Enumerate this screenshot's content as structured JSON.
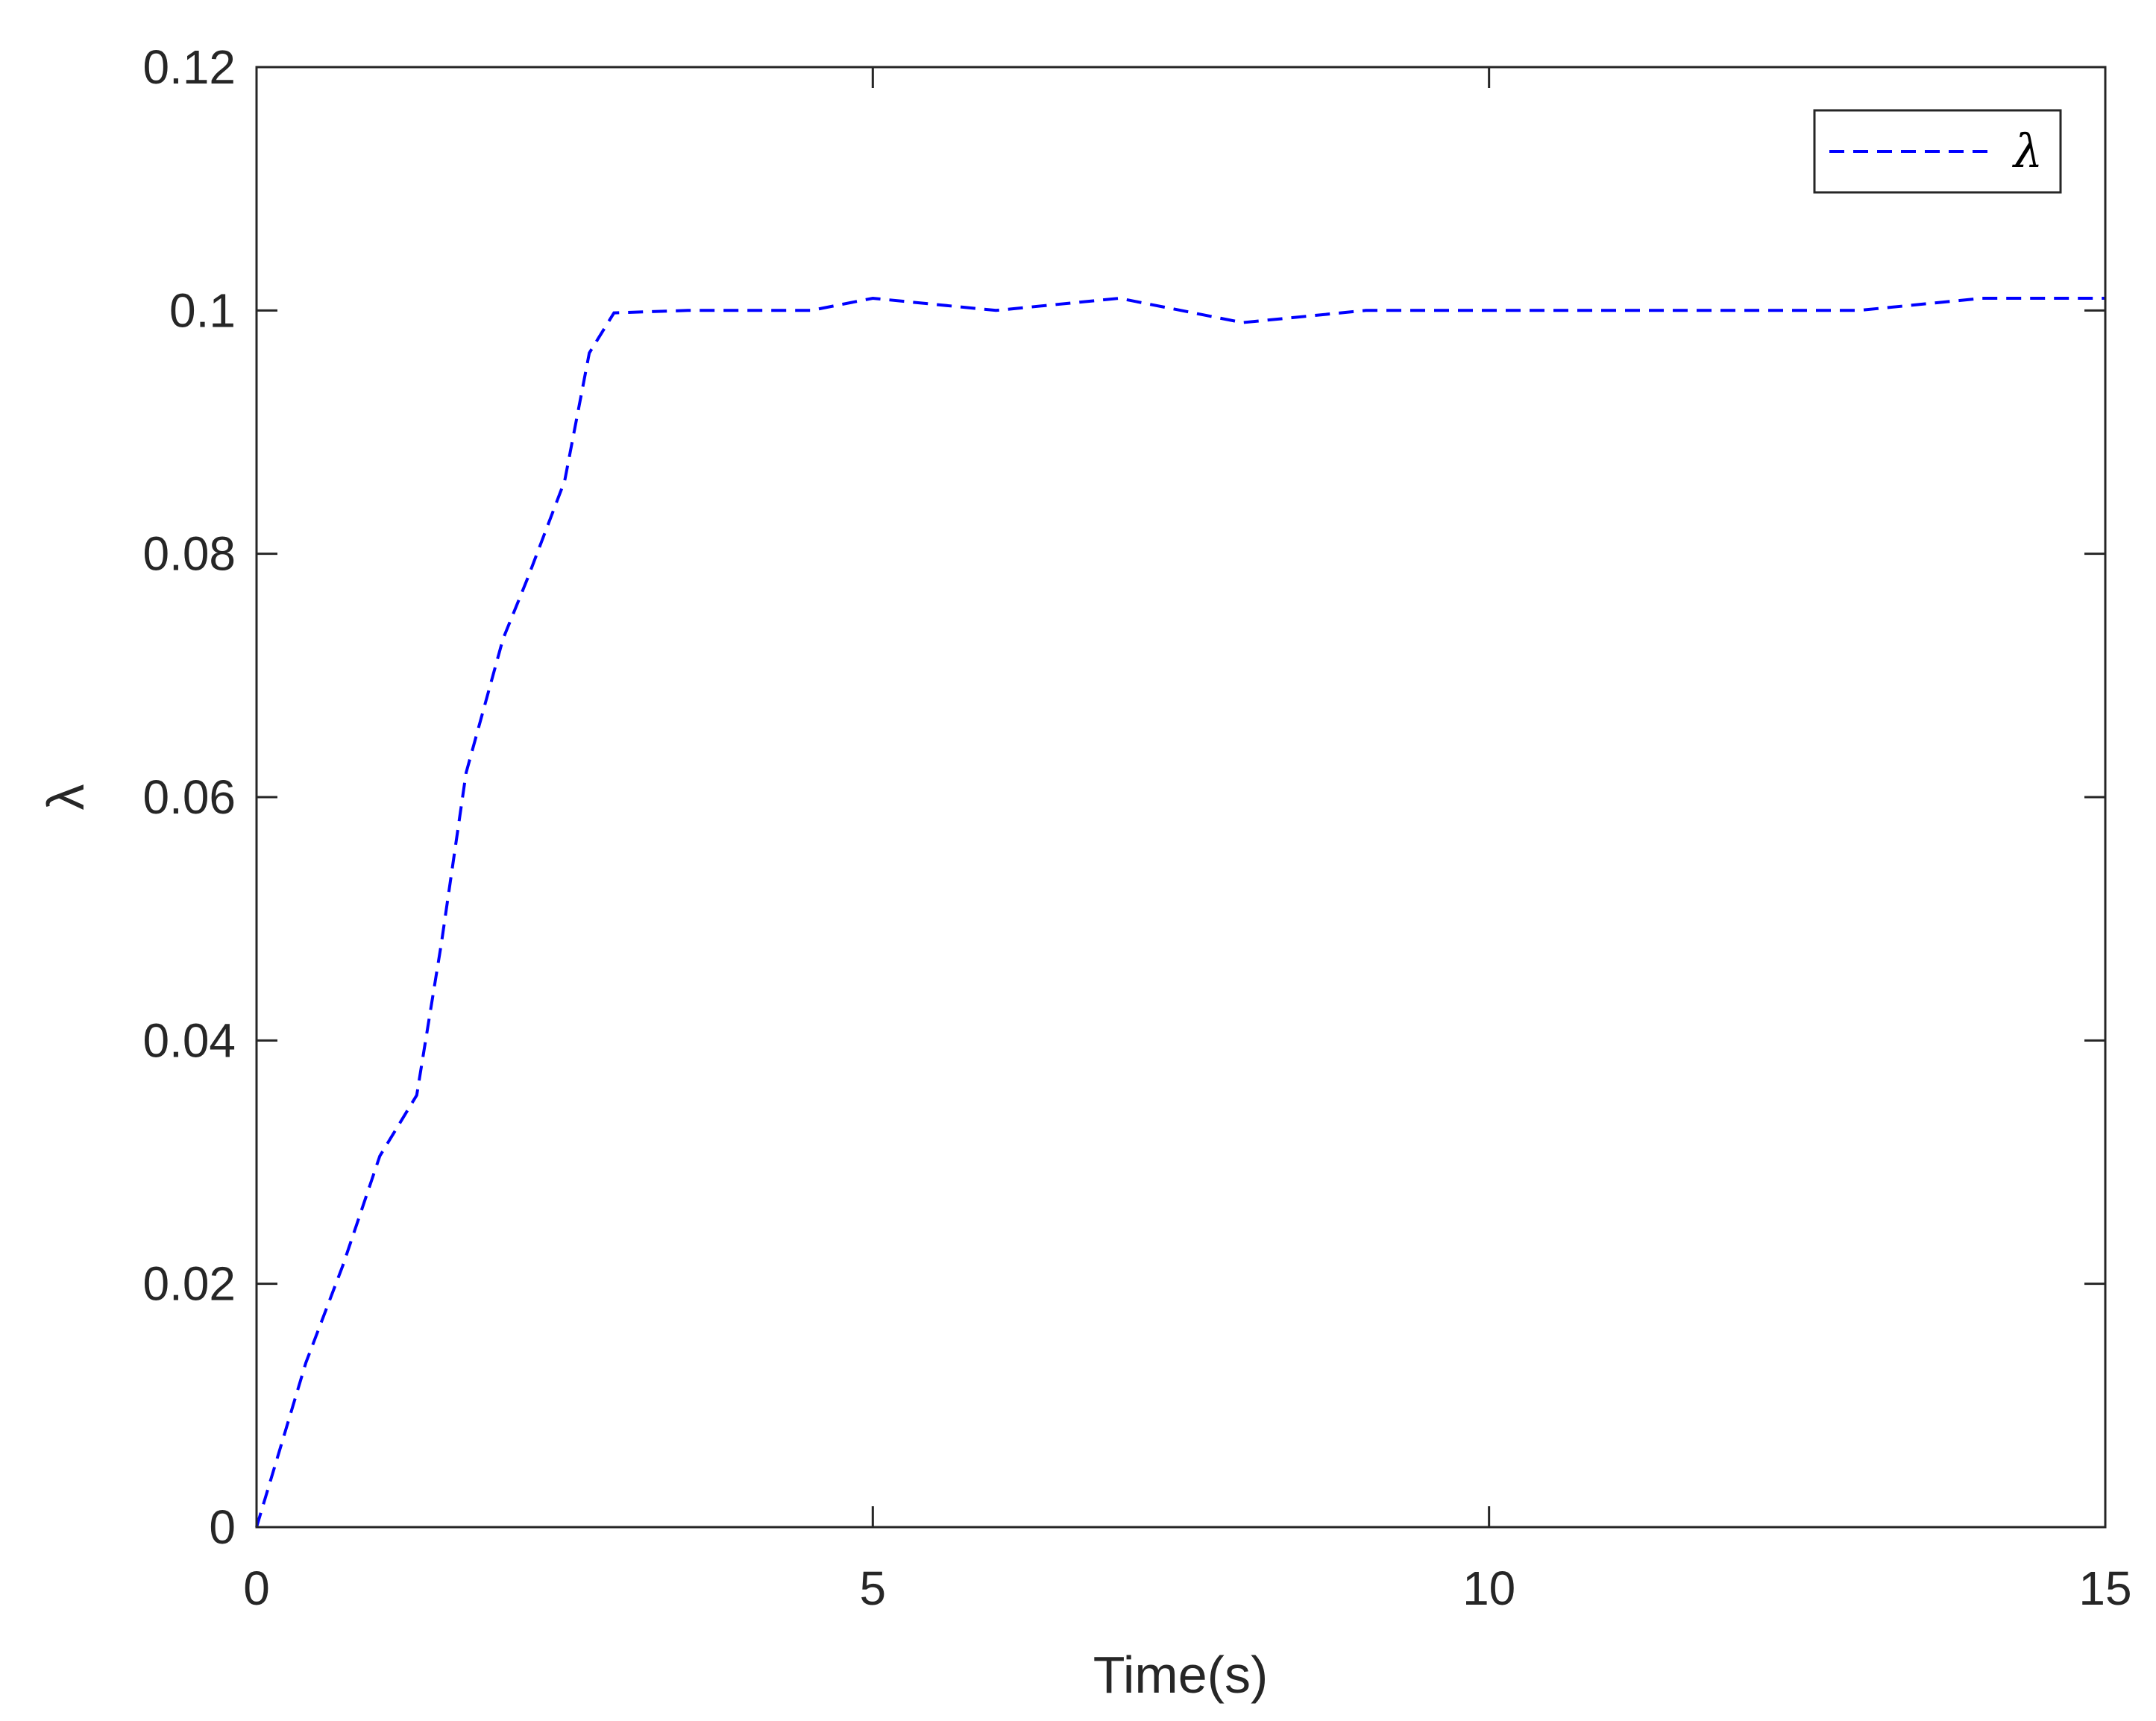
{
  "chart_data": {
    "type": "line",
    "xlabel": "Time(s)",
    "ylabel": "λ",
    "xlim": [
      0,
      15
    ],
    "ylim": [
      0,
      0.12
    ],
    "xticks": [
      {
        "value": 0,
        "label": "0"
      },
      {
        "value": 5,
        "label": "5"
      },
      {
        "value": 10,
        "label": "10"
      },
      {
        "value": 15,
        "label": "15"
      }
    ],
    "yticks": [
      {
        "value": 0,
        "label": "0"
      },
      {
        "value": 0.02,
        "label": "0.02"
      },
      {
        "value": 0.04,
        "label": "0.04"
      },
      {
        "value": 0.06,
        "label": "0.06"
      },
      {
        "value": 0.08,
        "label": "0.08"
      },
      {
        "value": 0.1,
        "label": "0.1"
      },
      {
        "value": 0.12,
        "label": "0.12"
      }
    ],
    "grid": false,
    "legend_position": "top-right",
    "series": [
      {
        "name": "λ",
        "color": "#0000ff",
        "line_style": "dashed",
        "x": [
          0,
          0.4,
          0.7,
          1.0,
          1.3,
          1.5,
          1.7,
          2.0,
          2.2,
          2.5,
          2.7,
          2.9,
          3.5,
          4.5,
          5.0,
          6.0,
          7.0,
          8.0,
          9.0,
          10.0,
          11.0,
          12.0,
          13.0,
          14.0,
          15.0
        ],
        "y": [
          0,
          0.0135,
          0.0215,
          0.0305,
          0.0355,
          0.048,
          0.062,
          0.073,
          0.078,
          0.086,
          0.0965,
          0.0998,
          0.1,
          0.1,
          0.101,
          0.1,
          0.101,
          0.099,
          0.1,
          0.1,
          0.1,
          0.1,
          0.1,
          0.101,
          0.101
        ]
      }
    ]
  }
}
